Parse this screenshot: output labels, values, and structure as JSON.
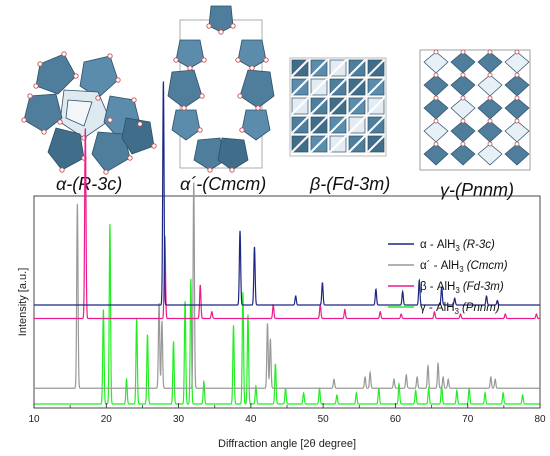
{
  "structures": [
    {
      "label": "α-(R-3c)"
    },
    {
      "label": "α´-(Cmcm)"
    },
    {
      "label": "β-(Fd-3m)"
    },
    {
      "label": "γ-(Pnnm)"
    }
  ],
  "chart_data": {
    "type": "line",
    "title": "",
    "xlabel": "Diffraction angle [2θ degree]",
    "ylabel": "Intensity [a.u.]",
    "xlim": [
      10,
      80
    ],
    "xticks": [
      "10",
      "20",
      "30",
      "40",
      "50",
      "60",
      "70",
      "80"
    ],
    "y_ticks_shown": false,
    "legend_position": "top-right",
    "series": [
      {
        "name": "α - AlH3 (R-3c)",
        "name_main": "α - AlH",
        "name_sub": "3",
        "name_group": "(R-3c)",
        "color": "#1c2683",
        "baseline": 0.44,
        "peaks": [
          [
            27.9,
            1.0
          ],
          [
            38.5,
            0.33
          ],
          [
            40.5,
            0.26
          ],
          [
            46.2,
            0.04
          ],
          [
            49.9,
            0.1
          ],
          [
            57.3,
            0.07
          ],
          [
            61.0,
            0.06
          ],
          [
            63.3,
            0.11
          ],
          [
            66.4,
            0.08
          ],
          [
            68.2,
            0.03
          ],
          [
            72.6,
            0.04
          ],
          [
            74.1,
            0.02
          ]
        ]
      },
      {
        "name": "α´ - AlH3 (Cmcm)",
        "name_main": "α´ - AlH",
        "name_sub": "3",
        "name_group": "(Cmcm)",
        "color": "#999999",
        "baseline": 0.07,
        "peaks": [
          [
            16.0,
            0.82
          ],
          [
            27.3,
            0.38
          ],
          [
            27.7,
            0.3
          ],
          [
            32.1,
            0.92
          ],
          [
            42.3,
            0.29
          ],
          [
            42.7,
            0.22
          ],
          [
            51.5,
            0.04
          ],
          [
            55.8,
            0.05
          ],
          [
            56.5,
            0.07
          ],
          [
            59.8,
            0.04
          ],
          [
            61.5,
            0.06
          ],
          [
            63.0,
            0.05
          ],
          [
            64.5,
            0.1
          ],
          [
            65.9,
            0.11
          ],
          [
            66.6,
            0.05
          ],
          [
            67.3,
            0.04
          ],
          [
            73.2,
            0.05
          ],
          [
            73.8,
            0.04
          ]
        ]
      },
      {
        "name": "β - AlH3 (Fd-3m)",
        "name_main": "β - AlH",
        "name_sub": "3",
        "name_group": "(Fd-3m)",
        "color": "#ee1a8e",
        "baseline": 0.38,
        "peaks": [
          [
            17.1,
            0.85
          ],
          [
            28.1,
            0.37
          ],
          [
            33.0,
            0.15
          ],
          [
            34.6,
            0.03
          ],
          [
            43.1,
            0.06
          ],
          [
            49.6,
            0.06
          ],
          [
            53.0,
            0.04
          ],
          [
            57.9,
            0.03
          ],
          [
            60.8,
            0.02
          ],
          [
            65.4,
            0.03
          ],
          [
            69.0,
            0.02
          ],
          [
            75.2,
            0.02
          ],
          [
            79.5,
            0.02
          ]
        ]
      },
      {
        "name": "γ - AlH3 (Pnnm)",
        "name_main": "γ - AlH",
        "name_sub": "3",
        "name_group": "(Pnnm)",
        "color": "#22ee22",
        "baseline": 0.0,
        "peaks": [
          [
            19.6,
            0.42
          ],
          [
            20.5,
            0.8
          ],
          [
            22.8,
            0.11
          ],
          [
            24.2,
            0.38
          ],
          [
            25.7,
            0.31
          ],
          [
            29.3,
            0.28
          ],
          [
            30.9,
            0.46
          ],
          [
            31.7,
            0.56
          ],
          [
            33.5,
            0.1
          ],
          [
            37.6,
            0.35
          ],
          [
            38.9,
            0.5
          ],
          [
            39.6,
            0.4
          ],
          [
            40.7,
            0.08
          ],
          [
            43.4,
            0.18
          ],
          [
            44.8,
            0.07
          ],
          [
            47.3,
            0.05
          ],
          [
            49.5,
            0.07
          ],
          [
            51.9,
            0.04
          ],
          [
            54.6,
            0.05
          ],
          [
            57.7,
            0.07
          ],
          [
            60.5,
            0.09
          ],
          [
            62.8,
            0.06
          ],
          [
            64.6,
            0.07
          ],
          [
            66.4,
            0.08
          ],
          [
            68.5,
            0.06
          ],
          [
            70.2,
            0.07
          ],
          [
            72.4,
            0.05
          ],
          [
            74.9,
            0.05
          ],
          [
            77.6,
            0.04
          ]
        ]
      }
    ]
  }
}
